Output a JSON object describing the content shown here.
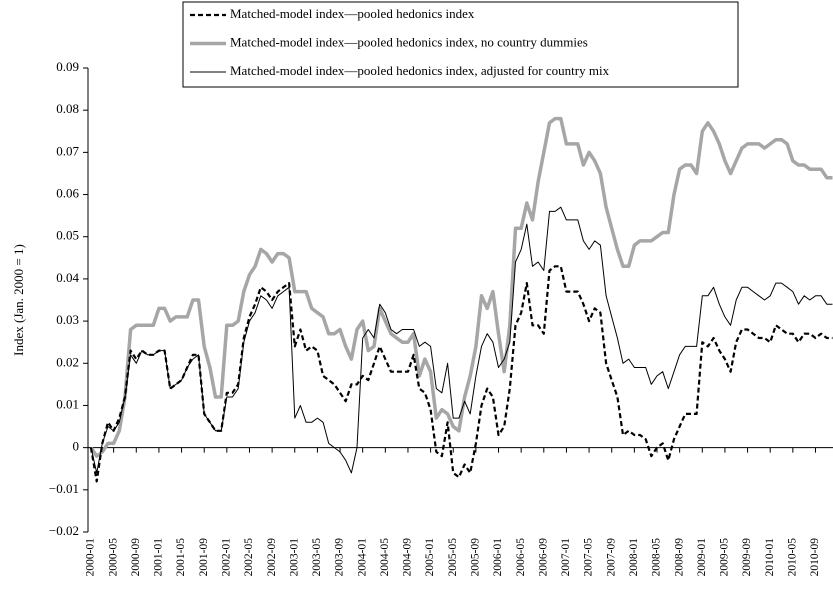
{
  "chart_data": {
    "type": "line",
    "y_label": "Index (Jan. 2000 = 1)",
    "categories": [
      "2000-01",
      null,
      null,
      null,
      "2000-05",
      null,
      null,
      null,
      "2000-09",
      null,
      null,
      null,
      "2001-01",
      null,
      null,
      null,
      "2001-05",
      null,
      null,
      null,
      "2001-09",
      null,
      null,
      null,
      "2002-01",
      null,
      null,
      null,
      "2002-05",
      null,
      null,
      null,
      "2002-09",
      null,
      null,
      null,
      "2003-01",
      null,
      null,
      null,
      "2003-05",
      null,
      null,
      null,
      "2003-09",
      null,
      null,
      null,
      "2004-01",
      null,
      null,
      null,
      "2004-05",
      null,
      null,
      null,
      "2004-09",
      null,
      null,
      null,
      "2005-01",
      null,
      null,
      null,
      "2005-05",
      null,
      null,
      null,
      "2005-09",
      null,
      null,
      null,
      "2006-01",
      null,
      null,
      null,
      "2006-05",
      null,
      null,
      null,
      "2006-09",
      null,
      null,
      null,
      "2007-01",
      null,
      null,
      null,
      "2007-05",
      null,
      null,
      null,
      "2007-09",
      null,
      null,
      null,
      "2008-01",
      null,
      null,
      null,
      "2008-05",
      null,
      null,
      null,
      "2008-09",
      null,
      null,
      null,
      "2009-01",
      null,
      null,
      null,
      "2009-05",
      null,
      null,
      null,
      "2009-09",
      null,
      null,
      null,
      "2010-01",
      null,
      null,
      null,
      "2010-05",
      null,
      null,
      null,
      "2010-09",
      null,
      null,
      null
    ],
    "ylim": [
      -0.02,
      0.09
    ],
    "yticks": [
      {
        "value": -0.02,
        "label": "−0.02"
      },
      {
        "value": -0.01,
        "label": "−0.01"
      },
      0,
      0.01,
      0.02,
      0.03,
      0.04,
      0.05,
      0.06,
      0.07,
      0.08,
      0.09
    ],
    "legend": "top",
    "series": [
      {
        "name": "Matched-model index—pooled hedonics index",
        "color": "#000000",
        "linestyle": "dashed",
        "linewidth": 2.2,
        "values": [
          0,
          -0.008,
          0.001,
          0.006,
          0.004,
          0.007,
          0.012,
          0.023,
          0.021,
          0.023,
          0.022,
          0.022,
          0.023,
          0.023,
          0.014,
          0.015,
          0.016,
          0.019,
          0.022,
          0.022,
          0.008,
          0.006,
          0.004,
          0.004,
          0.013,
          0.013,
          0.015,
          0.026,
          0.031,
          0.034,
          0.038,
          0.037,
          0.035,
          0.037,
          0.038,
          0.039,
          0.024,
          0.028,
          0.023,
          0.024,
          0.023,
          0.017,
          0.016,
          0.015,
          0.013,
          0.011,
          0.015,
          0.015,
          0.017,
          0.016,
          0.02,
          0.024,
          0.021,
          0.018,
          0.018,
          0.018,
          0.018,
          0.022,
          0.014,
          0.013,
          0.009,
          -0.001,
          -0.002,
          0.006,
          -0.006,
          -0.007,
          -0.004,
          -0.006,
          0.001,
          0.01,
          0.014,
          0.012,
          0.003,
          0.005,
          0.014,
          0.029,
          0.032,
          0.039,
          0.029,
          0.029,
          0.027,
          0.042,
          0.043,
          0.043,
          0.037,
          0.037,
          0.037,
          0.034,
          0.03,
          0.033,
          0.032,
          0.02,
          0.016,
          0.012,
          0.003,
          0.004,
          0.003,
          0.003,
          0.002,
          -0.002,
          0,
          0.001,
          -0.003,
          0.002,
          0.005,
          0.008,
          0.008,
          0.008,
          0.025,
          0.024,
          0.026,
          0.023,
          0.021,
          0.018,
          0.025,
          0.028,
          0.028,
          0.027,
          0.026,
          0.026,
          0.025,
          0.029,
          0.028,
          0.027,
          0.027,
          0.025,
          0.027,
          0.027,
          0.026,
          0.027,
          0.026,
          0.026
        ]
      },
      {
        "name": "Matched-model index—pooled hedonics index, no country dummies",
        "color": "#a6a6a6",
        "linestyle": "solid",
        "linewidth": 3.5,
        "values": [
          0,
          -0.002,
          -0.001,
          0.001,
          0.001,
          0.004,
          0.012,
          0.028,
          0.029,
          0.029,
          0.029,
          0.029,
          0.033,
          0.033,
          0.03,
          0.031,
          0.031,
          0.031,
          0.035,
          0.035,
          0.024,
          0.019,
          0.012,
          0.012,
          0.029,
          0.029,
          0.03,
          0.037,
          0.041,
          0.043,
          0.047,
          0.046,
          0.044,
          0.046,
          0.046,
          0.045,
          0.037,
          0.037,
          0.037,
          0.033,
          0.032,
          0.031,
          0.027,
          0.027,
          0.028,
          0.024,
          0.021,
          0.028,
          0.03,
          0.023,
          0.024,
          0.033,
          0.03,
          0.027,
          0.026,
          0.025,
          0.025,
          0.027,
          0.017,
          0.021,
          0.018,
          0.007,
          0.009,
          0.008,
          0.005,
          0.004,
          0.012,
          0.017,
          0.024,
          0.036,
          0.033,
          0.037,
          0.027,
          0.018,
          0.029,
          0.052,
          0.052,
          0.058,
          0.054,
          0.063,
          0.07,
          0.077,
          0.078,
          0.078,
          0.072,
          0.072,
          0.072,
          0.067,
          0.07,
          0.068,
          0.065,
          0.057,
          0.052,
          0.047,
          0.043,
          0.043,
          0.048,
          0.049,
          0.049,
          0.049,
          0.05,
          0.051,
          0.051,
          0.06,
          0.066,
          0.067,
          0.067,
          0.065,
          0.075,
          0.077,
          0.075,
          0.072,
          0.068,
          0.065,
          0.068,
          0.071,
          0.072,
          0.072,
          0.072,
          0.071,
          0.072,
          0.073,
          0.073,
          0.072,
          0.068,
          0.067,
          0.067,
          0.066,
          0.066,
          0.066,
          0.064,
          0.064
        ]
      },
      {
        "name": "Matched-model index—pooled hedonics index, adjusted for country mix",
        "color": "#000000",
        "linestyle": "solid",
        "linewidth": 1,
        "values": [
          0,
          -0.006,
          0.001,
          0.005,
          0.004,
          0.006,
          0.012,
          0.022,
          0.02,
          0.023,
          0.022,
          0.022,
          0.023,
          0.023,
          0.014,
          0.015,
          0.016,
          0.019,
          0.021,
          0.022,
          0.008,
          0.006,
          0.004,
          0.004,
          0.012,
          0.012,
          0.014,
          0.025,
          0.03,
          0.032,
          0.036,
          0.035,
          0.033,
          0.036,
          0.037,
          0.038,
          0.007,
          0.01,
          0.006,
          0.006,
          0.007,
          0.006,
          0.001,
          0,
          -0.001,
          -0.003,
          -0.006,
          0,
          0.026,
          0.028,
          0.026,
          0.034,
          0.032,
          0.028,
          0.027,
          0.028,
          0.028,
          0.028,
          0.024,
          0.025,
          0.024,
          0.014,
          0.013,
          0.02,
          0.007,
          0.007,
          0.011,
          0.008,
          0.017,
          0.024,
          0.027,
          0.025,
          0.019,
          0.021,
          0.025,
          0.044,
          0.047,
          0.053,
          0.043,
          0.044,
          0.042,
          0.056,
          0.056,
          0.057,
          0.054,
          0.054,
          0.054,
          0.049,
          0.047,
          0.049,
          0.048,
          0.036,
          0.031,
          0.026,
          0.02,
          0.021,
          0.019,
          0.019,
          0.019,
          0.015,
          0.017,
          0.018,
          0.014,
          0.018,
          0.022,
          0.024,
          0.024,
          0.024,
          0.036,
          0.036,
          0.038,
          0.034,
          0.031,
          0.029,
          0.035,
          0.038,
          0.038,
          0.037,
          0.036,
          0.035,
          0.036,
          0.039,
          0.039,
          0.038,
          0.037,
          0.034,
          0.036,
          0.035,
          0.036,
          0.036,
          0.034,
          0.034
        ]
      }
    ]
  }
}
